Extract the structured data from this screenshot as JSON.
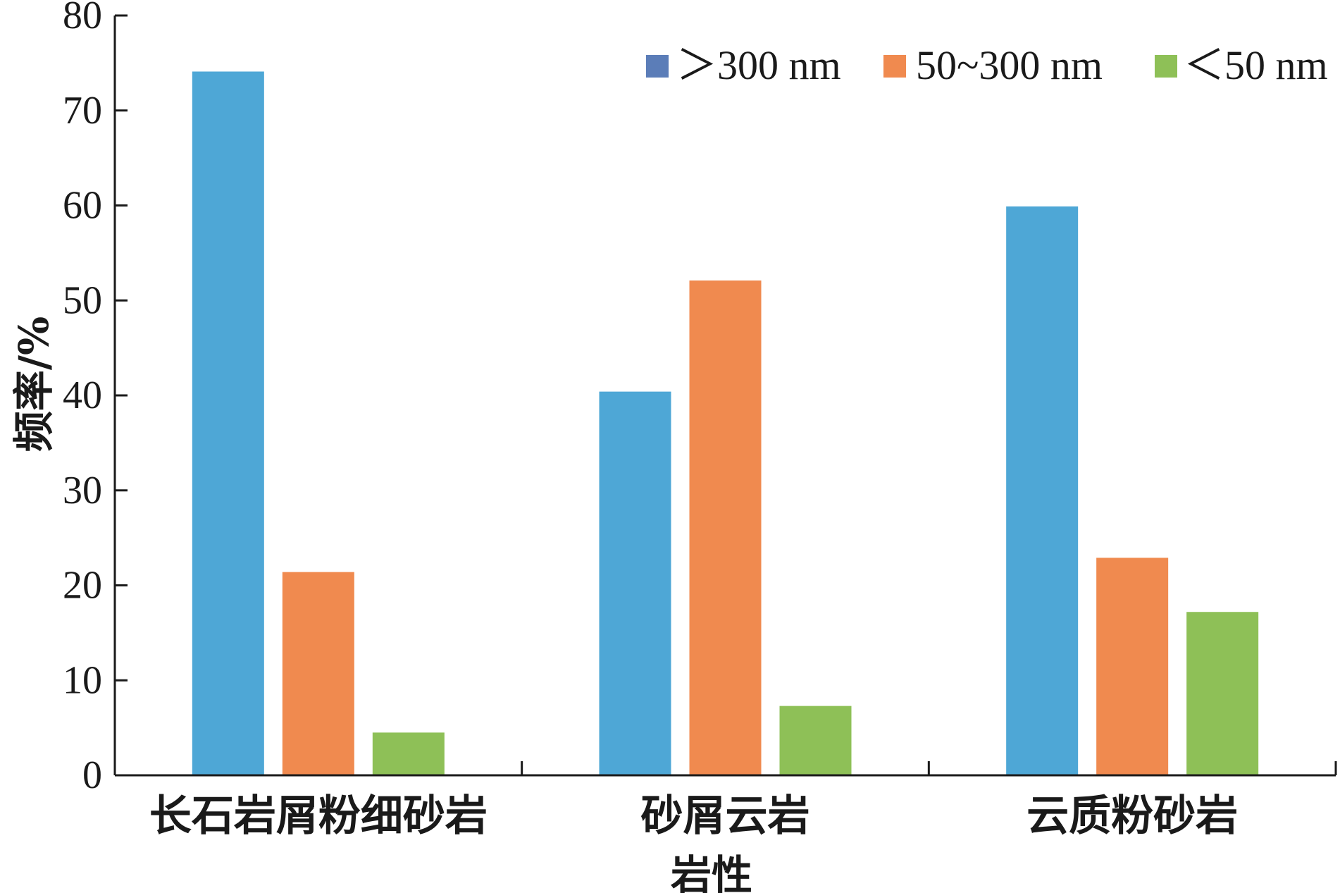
{
  "chart_data": {
    "type": "bar",
    "title": "",
    "xlabel": "岩性",
    "ylabel": "频率/%",
    "ylim": [
      0,
      80
    ],
    "yticks": [
      0,
      10,
      20,
      30,
      40,
      50,
      60,
      70,
      80
    ],
    "grid": false,
    "legend_position": "top-right",
    "categories": [
      "长石岩屑粉细砂岩",
      "砂屑云岩",
      "云质粉砂岩"
    ],
    "series": [
      {
        "name": "＞300 nm",
        "values": [
          74.1,
          40.4,
          59.9
        ],
        "color": "#4EA7D6",
        "legend_color": "#5B7DB8"
      },
      {
        "name": "50~300 nm",
        "values": [
          21.4,
          52.1,
          22.9
        ],
        "color": "#F08A4F"
      },
      {
        "name": "＜50 nm",
        "values": [
          4.5,
          7.3,
          17.2
        ],
        "color": "#8EC057"
      }
    ]
  }
}
